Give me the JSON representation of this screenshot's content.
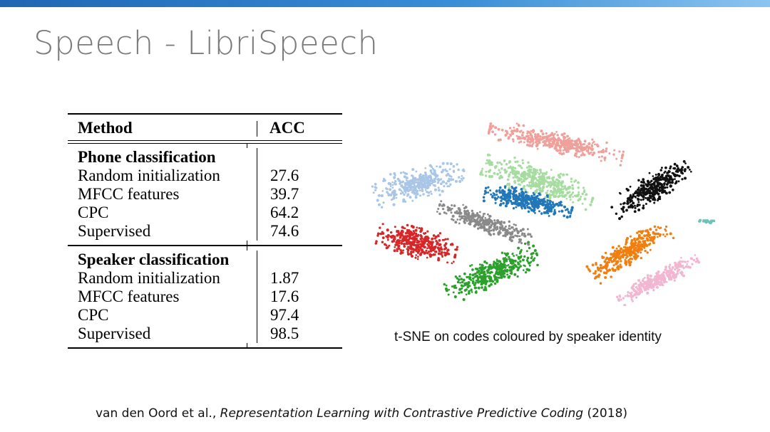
{
  "slide": {
    "title": "Speech - LibriSpeech"
  },
  "results_table": {
    "headers": [
      "Method",
      "ACC"
    ],
    "sections": [
      {
        "title": "Phone classification",
        "rows": [
          {
            "method": "Random initialization",
            "acc": "27.6"
          },
          {
            "method": "MFCC features",
            "acc": "39.7"
          },
          {
            "method": "CPC",
            "acc": "64.2"
          },
          {
            "method": "Supervised",
            "acc": "74.6"
          }
        ]
      },
      {
        "title": "Speaker classification",
        "rows": [
          {
            "method": "Random initialization",
            "acc": "1.87"
          },
          {
            "method": "MFCC features",
            "acc": "17.6"
          },
          {
            "method": "CPC",
            "acc": "97.4"
          },
          {
            "method": "Supervised",
            "acc": "98.5"
          }
        ]
      }
    ]
  },
  "tsne": {
    "caption": "t-SNE on codes coloured by speaker identity",
    "cluster_colors": {
      "salmon": "#f0a09a",
      "light_blue": "#a9c6e6",
      "light_green": "#a6dca0",
      "blue": "#2277b8",
      "black": "#111111",
      "gray": "#8a8a8a",
      "red": "#d62728",
      "green": "#2ca02c",
      "orange": "#f07f10",
      "pink": "#f2b6d2",
      "teal": "#6fc2b8"
    }
  },
  "citation": {
    "authors": "van den Oord et al.,",
    "paper": "Representation Learning with Contrastive Predictive Coding",
    "year": "(2018)"
  }
}
